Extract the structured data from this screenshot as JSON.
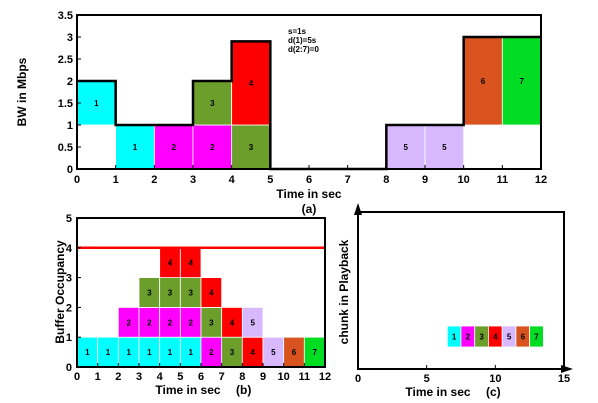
{
  "colors": {
    "1": "#00ffff",
    "2": "#ff00ff",
    "3": "#6b9e2a",
    "4": "#ff0000",
    "5": "#d8b8ff",
    "6": "#d9531e",
    "7": "#00dd22",
    "limit": "#ff0000"
  },
  "chart_data": [
    {
      "type": "bar",
      "panel_label": "(a)",
      "xlabel": "Time in sec",
      "ylabel": "BW in Mbps",
      "xlim": [
        0,
        12
      ],
      "ylim": [
        0,
        3.5
      ],
      "xticks": [
        "0",
        "1",
        "2",
        "3",
        "4",
        "5",
        "6",
        "7",
        "8",
        "9",
        "10",
        "11",
        "12"
      ],
      "yticks": [
        "0",
        "0.5",
        "1",
        "1.5",
        "2",
        "2.5",
        "3",
        "3.5"
      ],
      "annotations": [
        "s=1s",
        "d(1)=5s",
        "d(2:7)=0"
      ],
      "blocks": [
        {
          "x0": 0,
          "x1": 1,
          "y0": 1,
          "y1": 2,
          "chunk": "1"
        },
        {
          "x0": 1,
          "x1": 2,
          "y0": 0,
          "y1": 1,
          "chunk": "1"
        },
        {
          "x0": 2,
          "x1": 3,
          "y0": 0,
          "y1": 1,
          "chunk": "2"
        },
        {
          "x0": 3,
          "x1": 4,
          "y0": 0,
          "y1": 1,
          "chunk": "2"
        },
        {
          "x0": 3,
          "x1": 4,
          "y0": 1,
          "y1": 2,
          "chunk": "3"
        },
        {
          "x0": 4,
          "x1": 5,
          "y0": 0,
          "y1": 1,
          "chunk": "3"
        },
        {
          "x0": 4,
          "x1": 5,
          "y0": 1,
          "y1": 2.9,
          "chunk": "4"
        },
        {
          "x0": 8,
          "x1": 9,
          "y0": 0,
          "y1": 1,
          "chunk": "5"
        },
        {
          "x0": 9,
          "x1": 10,
          "y0": 0,
          "y1": 1,
          "chunk": "5"
        },
        {
          "x0": 10,
          "x1": 11,
          "y0": 1,
          "y1": 3,
          "chunk": "6"
        },
        {
          "x0": 11,
          "x1": 12,
          "y0": 1,
          "y1": 3,
          "chunk": "7"
        }
      ],
      "bandwidth_profile": [
        [
          0,
          2
        ],
        [
          1,
          2
        ],
        [
          1,
          1
        ],
        [
          3,
          1
        ],
        [
          3,
          2
        ],
        [
          4,
          2
        ],
        [
          4,
          2.9
        ],
        [
          5,
          2.9
        ],
        [
          5,
          0
        ],
        [
          8,
          0
        ],
        [
          8,
          1
        ],
        [
          10,
          1
        ],
        [
          10,
          3
        ],
        [
          12,
          3
        ]
      ]
    },
    {
      "type": "bar",
      "panel_label": "(b)",
      "xlabel": "Time in sec",
      "ylabel": "Buffer Occupancy",
      "xlim": [
        0,
        12
      ],
      "ylim": [
        0,
        5
      ],
      "xticks": [
        "0",
        "1",
        "2",
        "3",
        "4",
        "5",
        "6",
        "7",
        "8",
        "9",
        "10",
        "11",
        "12"
      ],
      "yticks": [
        "0",
        "1",
        "2",
        "3",
        "4",
        "5"
      ],
      "buffer_limit": 4,
      "cells": [
        {
          "x": 0,
          "level": 0,
          "chunk": "1"
        },
        {
          "x": 1,
          "level": 0,
          "chunk": "1"
        },
        {
          "x": 2,
          "level": 0,
          "chunk": "1"
        },
        {
          "x": 3,
          "level": 0,
          "chunk": "1"
        },
        {
          "x": 4,
          "level": 0,
          "chunk": "1"
        },
        {
          "x": 5,
          "level": 0,
          "chunk": "1"
        },
        {
          "x": 6,
          "level": 0,
          "chunk": "2"
        },
        {
          "x": 7,
          "level": 0,
          "chunk": "3"
        },
        {
          "x": 8,
          "level": 0,
          "chunk": "4"
        },
        {
          "x": 9,
          "level": 0,
          "chunk": "5"
        },
        {
          "x": 10,
          "level": 0,
          "chunk": "6"
        },
        {
          "x": 11,
          "level": 0,
          "chunk": "7"
        },
        {
          "x": 2,
          "level": 1,
          "chunk": "2"
        },
        {
          "x": 3,
          "level": 1,
          "chunk": "2"
        },
        {
          "x": 4,
          "level": 1,
          "chunk": "2"
        },
        {
          "x": 5,
          "level": 1,
          "chunk": "2"
        },
        {
          "x": 6,
          "level": 1,
          "chunk": "3"
        },
        {
          "x": 7,
          "level": 1,
          "chunk": "4"
        },
        {
          "x": 8,
          "level": 1,
          "chunk": "5"
        },
        {
          "x": 3,
          "level": 2,
          "chunk": "3"
        },
        {
          "x": 4,
          "level": 2,
          "chunk": "3"
        },
        {
          "x": 5,
          "level": 2,
          "chunk": "3"
        },
        {
          "x": 6,
          "level": 2,
          "chunk": "4"
        },
        {
          "x": 4,
          "level": 3,
          "chunk": "4"
        },
        {
          "x": 5,
          "level": 3,
          "chunk": "4"
        }
      ]
    },
    {
      "type": "bar",
      "panel_label": "(c)",
      "xlabel": "Time in sec",
      "ylabel": "chunk in Playback",
      "xlim": [
        0,
        15
      ],
      "xticks": [
        "0",
        "5",
        "10",
        "15"
      ],
      "playback": [
        {
          "x": 6.5,
          "chunk": "1"
        },
        {
          "x": 7.5,
          "chunk": "2"
        },
        {
          "x": 8.5,
          "chunk": "3"
        },
        {
          "x": 9.5,
          "chunk": "4"
        },
        {
          "x": 10.5,
          "chunk": "5"
        },
        {
          "x": 11.5,
          "chunk": "6"
        },
        {
          "x": 12.5,
          "chunk": "7"
        }
      ]
    }
  ]
}
